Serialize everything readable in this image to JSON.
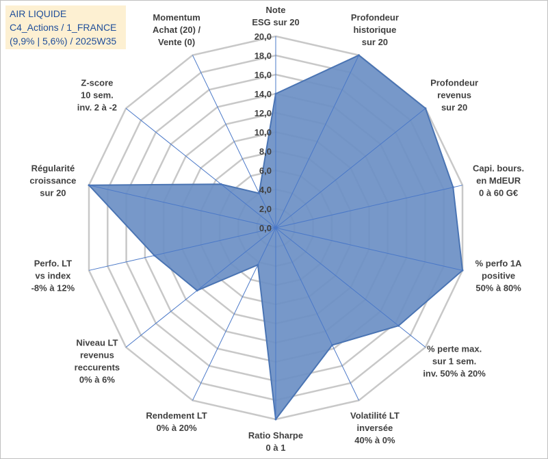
{
  "header": {
    "line1": "AIR LIQUIDE",
    "line2": "C4_Actions / 1_FRANCE",
    "line3": "(9,9% | 5,6%) / 2025W35"
  },
  "chart_data": {
    "type": "radar",
    "rmin": 0,
    "rmax": 20,
    "step": 2,
    "tick_labels": [
      "0,0",
      "2,0",
      "4,0",
      "6,0",
      "8,0",
      "10,0",
      "12,0",
      "14,0",
      "16,0",
      "18,0",
      "20,0"
    ],
    "grid": true,
    "fill_color": "#6b8fc4",
    "line_color": "#4a74b3",
    "grid_color": "#c8c8c8",
    "spoke_color": "#4a78c8",
    "axes": [
      {
        "label": [
          "Note",
          "ESG sur 20"
        ],
        "value": 14.0
      },
      {
        "label": [
          "Profondeur",
          "historique",
          "sur 20"
        ],
        "value": 20.0
      },
      {
        "label": [
          "Profondeur",
          "revenus",
          "sur 20"
        ],
        "value": 20.0
      },
      {
        "label": [
          "Capi. bours.",
          "en MdEUR",
          "0 à 60 G€"
        ],
        "value": 19.0
      },
      {
        "label": [
          "% perfo 1A",
          "positive",
          "50% à 80%"
        ],
        "value": 20.0
      },
      {
        "label": [
          "% perte max.",
          "sur 1 sem.",
          "inv. 50% à 20%"
        ],
        "value": 16.4
      },
      {
        "label": [
          "Volatilité LT",
          "inversée",
          "40% à 0%"
        ],
        "value": 13.6
      },
      {
        "label": [
          "Ratio Sharpe",
          "0 à 1"
        ],
        "value": 20.0
      },
      {
        "label": [
          "Rendement LT",
          "0% à 20%"
        ],
        "value": 4.3
      },
      {
        "label": [
          "Niveau LT",
          "revenus",
          "reccurents",
          "0% à 6%"
        ],
        "value": 10.5
      },
      {
        "label": [
          "Perfo. LT",
          "vs index",
          "-8% à 12%"
        ],
        "value": 13.0
      },
      {
        "label": [
          "Régularité",
          "croissance",
          "sur 20"
        ],
        "value": 20.0
      },
      {
        "label": [
          "Z-score",
          "10 sem.",
          "inv. 2 à -2"
        ],
        "value": 7.3
      },
      {
        "label": [
          "Momentum",
          "Achat (20) /",
          "Vente (0)"
        ],
        "value": 4.0
      }
    ]
  }
}
